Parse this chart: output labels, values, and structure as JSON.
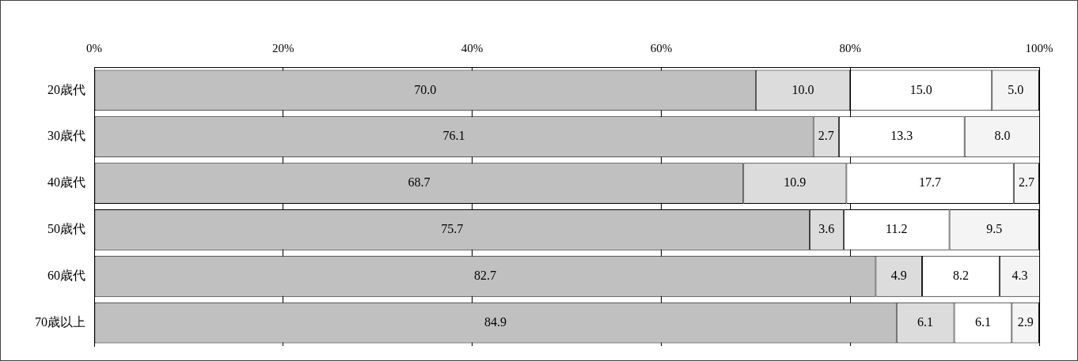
{
  "chart_data": {
    "type": "bar",
    "orientation": "horizontal",
    "stacked": true,
    "categories": [
      "20歳代",
      "30歳代",
      "40歳代",
      "50歳代",
      "60歳代",
      "70歳以上"
    ],
    "series": [
      {
        "color": "#c0c0c0",
        "values": [
          70.0,
          76.1,
          68.7,
          75.7,
          82.7,
          84.9
        ],
        "value_labels": [
          "70.0",
          "76.1",
          "68.7",
          "75.7",
          "82.7",
          "84.9"
        ]
      },
      {
        "color": "#dcdcdc",
        "values": [
          10.0,
          2.7,
          10.9,
          3.6,
          4.9,
          6.1
        ],
        "value_labels": [
          "10.0",
          "2.7",
          "10.9",
          "3.6",
          "4.9",
          "6.1"
        ]
      },
      {
        "color": "#ffffff",
        "values": [
          15.0,
          13.3,
          17.7,
          11.2,
          8.2,
          6.1
        ],
        "value_labels": [
          "15.0",
          "13.3",
          "17.7",
          "11.2",
          "8.2",
          "6.1"
        ]
      },
      {
        "color": "#f4f4f4",
        "values": [
          5.0,
          8.0,
          2.7,
          9.5,
          4.3,
          2.9
        ],
        "value_labels": [
          "5.0",
          "8.0",
          "2.7",
          "9.5",
          "4.3",
          "2.9"
        ]
      }
    ],
    "xlim": [
      0,
      100
    ],
    "xticks": [
      {
        "value": 0,
        "label": "0%"
      },
      {
        "value": 20,
        "label": "20%"
      },
      {
        "value": 40,
        "label": "40%"
      },
      {
        "value": 60,
        "label": "60%"
      },
      {
        "value": 80,
        "label": "80%"
      },
      {
        "value": 100,
        "label": "100%"
      }
    ],
    "grid": "x",
    "legend": false
  }
}
